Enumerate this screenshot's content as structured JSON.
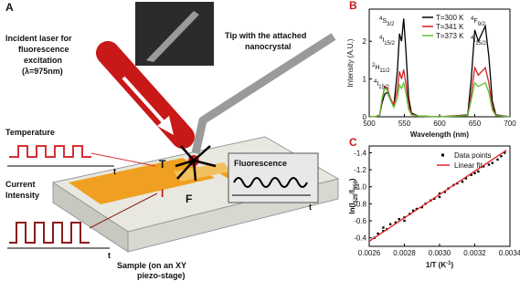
{
  "panel_a": {
    "label": "A",
    "laser_text": [
      "Incident laser for",
      "fluorescence",
      "excitation",
      "(λ=975nm)"
    ],
    "tip_text": [
      "Tip with the attached",
      "nanocrystal"
    ],
    "temperature": "Temperature",
    "temperature_axis": "t",
    "current": [
      "Current",
      "Intensity"
    ],
    "current_axis": "t",
    "symbol_t": "T",
    "symbol_i": "I",
    "symbol_f": "F",
    "fluorescence": "Fluorescence",
    "fluorescence_axis": "t",
    "sample": [
      "Sample (on an XY",
      "piezo-stage)"
    ]
  },
  "chart_data": [
    {
      "type": "line",
      "panel": "B",
      "xlabel": "Wavelength (nm)",
      "ylabel": "Intensity (A.U.)",
      "x": [
        500,
        510,
        515,
        518,
        522,
        526,
        530,
        535,
        540,
        543,
        546,
        549,
        552,
        556,
        560,
        570,
        600,
        640,
        645,
        650,
        655,
        660,
        665,
        670,
        675,
        680,
        700
      ],
      "series": [
        {
          "name": "T=300 K",
          "color": "#000000",
          "values": [
            0,
            0.01,
            0.05,
            0.35,
            0.6,
            0.65,
            0.45,
            0.3,
            1.2,
            2.2,
            2.0,
            2.6,
            1.8,
            0.5,
            0.1,
            0.02,
            0,
            0.05,
            1.0,
            2.3,
            2.0,
            2.2,
            2.4,
            1.6,
            0.4,
            0.05,
            0
          ]
        },
        {
          "name": "T=341 K",
          "color": "#d62020",
          "values": [
            0,
            0.01,
            0.06,
            0.45,
            0.8,
            0.75,
            0.5,
            0.3,
            0.7,
            1.2,
            1.0,
            1.25,
            0.9,
            0.3,
            0.07,
            0.02,
            0,
            0.04,
            0.6,
            1.3,
            1.1,
            1.2,
            1.3,
            0.9,
            0.25,
            0.04,
            0
          ]
        },
        {
          "name": "T=373 K",
          "color": "#5fbf3a",
          "values": [
            0,
            0.01,
            0.06,
            0.45,
            0.75,
            0.7,
            0.45,
            0.25,
            0.5,
            0.85,
            0.75,
            0.9,
            0.65,
            0.2,
            0.05,
            0.02,
            0,
            0.03,
            0.45,
            0.9,
            0.8,
            0.85,
            0.9,
            0.65,
            0.18,
            0.03,
            0
          ]
        }
      ],
      "annotations": [
        [
          {
            "t": "4",
            "sup": true
          },
          {
            "t": "S"
          },
          {
            "t": "3/2",
            "sub": true
          }
        ],
        [
          {
            "t": "4",
            "sup": true
          },
          {
            "t": "I"
          },
          {
            "t": "15/2",
            "sub": true
          }
        ],
        [
          {
            "t": "2",
            "sup": true
          },
          {
            "t": "H"
          },
          {
            "t": "11/2",
            "sub": true
          }
        ],
        [
          {
            "t": "4",
            "sup": true
          },
          {
            "t": "I"
          },
          {
            "t": "15/2",
            "sub": true
          }
        ],
        [
          {
            "t": "4",
            "sup": true
          },
          {
            "t": "F"
          },
          {
            "t": "9/2",
            "sub": true
          }
        ],
        [
          {
            "t": "4",
            "sup": true
          },
          {
            "t": "I"
          },
          {
            "t": "15/2",
            "sub": true
          }
        ]
      ],
      "xlim": [
        500,
        700
      ],
      "xticks": [
        500,
        550,
        600,
        650,
        700
      ],
      "ylim": [
        0,
        2.85
      ],
      "yticks": [
        0,
        1,
        2
      ]
    },
    {
      "type": "scatter",
      "panel": "C",
      "xlabel": [
        {
          "t": "1/T (K"
        },
        {
          "t": "-1",
          "sup": true
        },
        {
          "t": ")"
        }
      ],
      "ylabel": [
        {
          "t": "ln(I"
        },
        {
          "t": "525",
          "sub": true
        },
        {
          "t": "/I"
        },
        {
          "t": "550",
          "sub": true
        },
        {
          "t": ")"
        }
      ],
      "series": [
        {
          "name": "Data points",
          "color": "#000000",
          "x": [
            0.00263,
            0.00265,
            0.00268,
            0.00268,
            0.0027,
            0.00272,
            0.00275,
            0.00277,
            0.0028,
            0.0028,
            0.00283,
            0.00285,
            0.00287,
            0.0029,
            0.00292,
            0.00295,
            0.00297,
            0.003,
            0.003,
            0.00303,
            0.00305,
            0.00308,
            0.0031,
            0.00313,
            0.00315,
            0.00318,
            0.0032,
            0.00322,
            0.00325,
            0.00328,
            0.0033,
            0.00333,
            0.00335,
            0.00337
          ],
          "values": [
            -0.4,
            -0.45,
            -0.48,
            -0.52,
            -0.5,
            -0.56,
            -0.58,
            -0.62,
            -0.64,
            -0.6,
            -0.68,
            -0.72,
            -0.74,
            -0.76,
            -0.8,
            -0.84,
            -0.86,
            -0.88,
            -0.92,
            -0.94,
            -0.98,
            -1.02,
            -1.04,
            -1.06,
            -1.1,
            -1.14,
            -1.16,
            -1.18,
            -1.24,
            -1.26,
            -1.28,
            -1.32,
            -1.36,
            -1.4
          ]
        },
        {
          "name": "Linear fit",
          "color": "#e0202a",
          "x": [
            0.0026,
            0.00338
          ],
          "values": [
            -0.36,
            -1.43
          ]
        }
      ],
      "xlim": [
        0.0026,
        0.0034
      ],
      "xticks": [
        0.0026,
        0.0028,
        {
          "value": 0.003,
          "label": "0.0030"
        },
        0.0032,
        0.0034
      ],
      "ylim": [
        -0.3,
        -1.48
      ],
      "yticks": [
        -0.4,
        -0.6,
        -0.8,
        {
          "value": -1,
          "label": "-1.0"
        },
        -1.2,
        -1.4
      ]
    }
  ]
}
